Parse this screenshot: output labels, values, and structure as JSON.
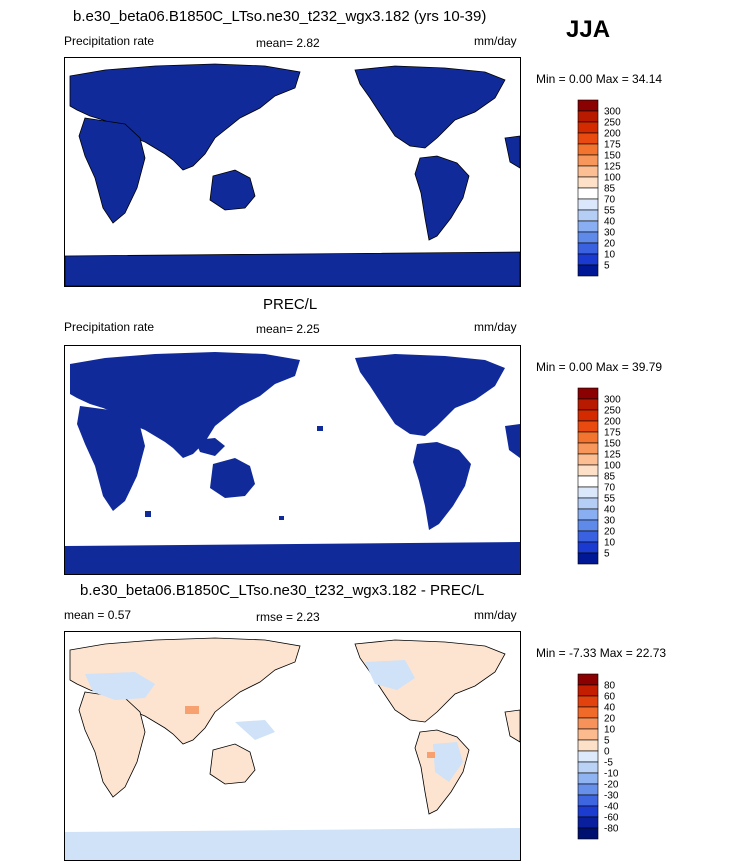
{
  "season": "JJA",
  "panels": [
    {
      "title": "b.e30_beta06.B1850C_LTso.ne30_t232_wgx3.182 (yrs 10-39)",
      "left_label": "Precipitation rate",
      "stat_text": "mean=   2.82",
      "units": "mm/day",
      "minmax": "Min =   0.00 Max =  34.14",
      "colorbar_labels": [
        "300",
        "250",
        "200",
        "175",
        "150",
        "125",
        "100",
        "85",
        "70",
        "55",
        "40",
        "30",
        "20",
        "10",
        "5"
      ],
      "colorbar_colors": [
        "#8b0000",
        "#b81a00",
        "#d42a00",
        "#e84a10",
        "#f2742e",
        "#f7975c",
        "#fbbf93",
        "#fde0c8",
        "#ffffff",
        "#dbe8fb",
        "#b5cef6",
        "#8aaef2",
        "#5f8aea",
        "#3a62e0",
        "#1a3ad0",
        "#001896"
      ]
    },
    {
      "title": "PREC/L",
      "left_label": "Precipitation rate",
      "stat_text": "mean=   2.25",
      "units": "mm/day",
      "minmax": "Min =   0.00 Max =  39.79",
      "colorbar_labels": [
        "300",
        "250",
        "200",
        "175",
        "150",
        "125",
        "100",
        "85",
        "70",
        "55",
        "40",
        "30",
        "20",
        "10",
        "5"
      ],
      "colorbar_colors": [
        "#8b0000",
        "#b81a00",
        "#d42a00",
        "#e84a10",
        "#f2742e",
        "#f7975c",
        "#fbbf93",
        "#fde0c8",
        "#ffffff",
        "#dbe8fb",
        "#b5cef6",
        "#8aaef2",
        "#5f8aea",
        "#3a62e0",
        "#1a3ad0",
        "#001896"
      ]
    },
    {
      "title": "b.e30_beta06.B1850C_LTso.ne30_t232_wgx3.182 - PREC/L",
      "left_label": "mean =   0.57",
      "stat_text": "rmse =   2.23",
      "units": "mm/day",
      "minmax": "Min =  -7.33 Max =  22.73",
      "colorbar_labels": [
        "80",
        "60",
        "40",
        "20",
        "10",
        "5",
        "0",
        "-5",
        "-10",
        "-20",
        "-30",
        "-40",
        "-60",
        "-80"
      ],
      "colorbar_colors": [
        "#8b0000",
        "#c41e00",
        "#e2420e",
        "#f06a2a",
        "#f7935a",
        "#fbbb8f",
        "#fde0c8",
        "#dceafb",
        "#b9d2f6",
        "#90b3f1",
        "#6790ea",
        "#3e66e0",
        "#1c3cd0",
        "#0a1f9e",
        "#001070"
      ]
    }
  ]
}
